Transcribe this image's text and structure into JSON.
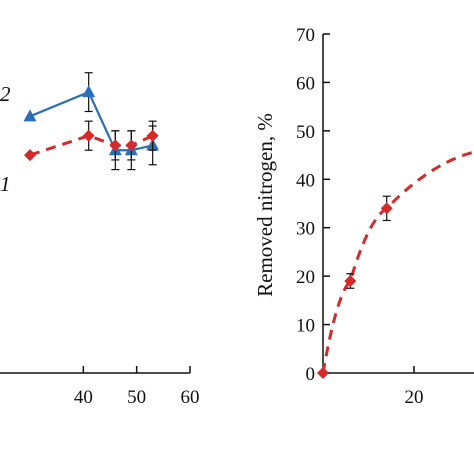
{
  "chart_data": [
    {
      "type": "line",
      "xlim": [
        0,
        60
      ],
      "ylim": [
        0,
        70
      ],
      "x_ticks": [
        "40",
        "50",
        "60"
      ],
      "series": [
        {
          "name": "2",
          "color": "#2a6fb8",
          "line_style": "solid",
          "marker": "triangle",
          "x": [
            30,
            41,
            46,
            49,
            53
          ],
          "y": [
            53,
            58,
            46,
            46,
            47
          ],
          "err": [
            0,
            4,
            4,
            4,
            4
          ]
        },
        {
          "name": "1",
          "color": "#d42a2a",
          "line_style": "dashed",
          "marker": "diamond",
          "x": [
            30,
            41,
            46,
            49,
            53
          ],
          "y": [
            45,
            49,
            47,
            47,
            49
          ],
          "err": [
            0,
            3,
            3,
            3,
            3
          ]
        }
      ]
    },
    {
      "type": "line",
      "ylabel": "Removed nitrogen, %",
      "xlim": [
        0,
        40
      ],
      "ylim": [
        0,
        70
      ],
      "x_ticks": [
        "20"
      ],
      "y_ticks": [
        "0",
        "10",
        "20",
        "30",
        "40",
        "50",
        "60",
        "70"
      ],
      "series": [
        {
          "color": "#d42a2a",
          "line_style": "dashed",
          "marker": "diamond",
          "x": [
            0,
            6,
            14,
            35
          ],
          "y": [
            0,
            19,
            34,
            46
          ],
          "err": [
            0,
            1.5,
            2.5,
            0
          ]
        }
      ]
    }
  ]
}
